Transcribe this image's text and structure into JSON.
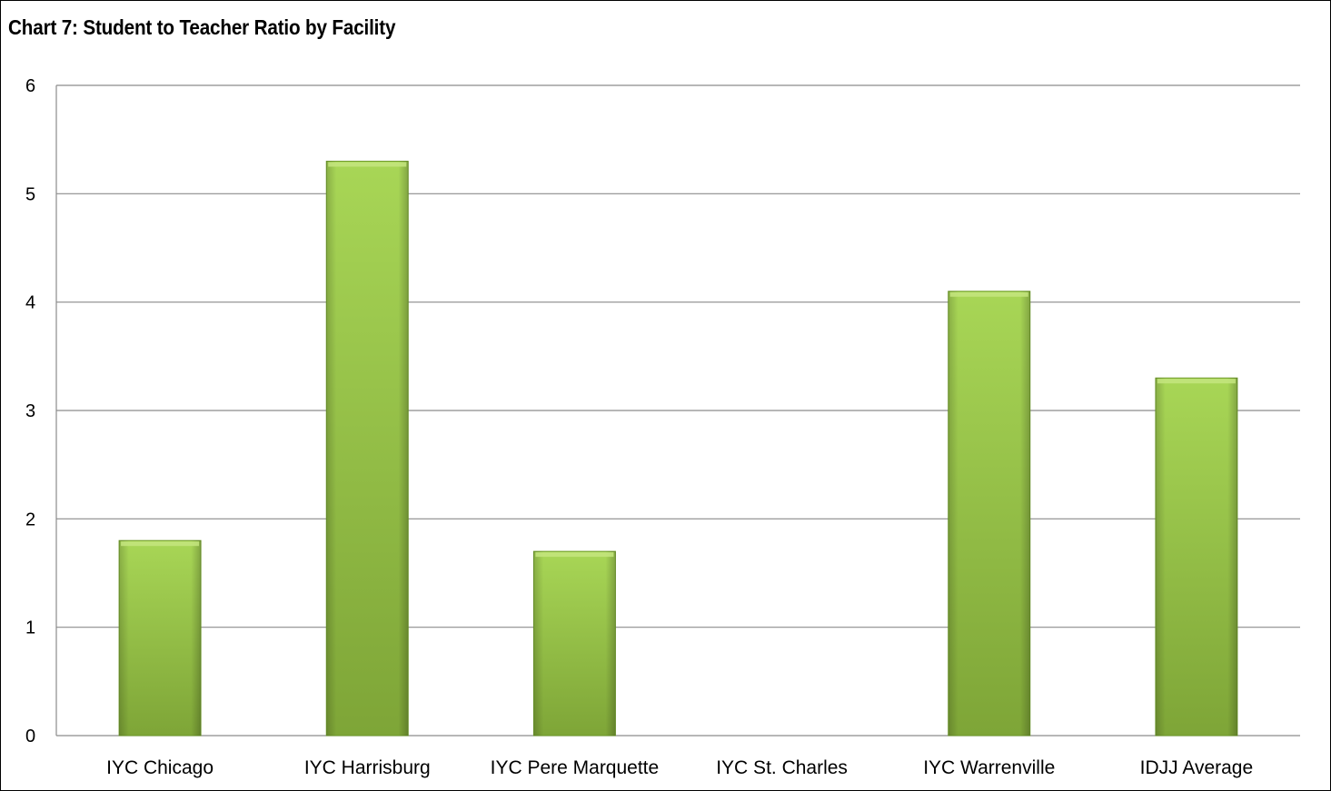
{
  "chart_data": {
    "type": "bar",
    "title": "Chart 7: Student to Teacher Ratio by Facility",
    "categories": [
      "IYC Chicago",
      "IYC Harrisburg",
      "IYC Pere Marquette",
      "IYC St. Charles",
      "IYC Warrenville",
      "IDJJ Average"
    ],
    "values": [
      1.8,
      5.3,
      1.7,
      0,
      4.1,
      3.3
    ],
    "ylim": [
      0,
      6
    ],
    "yticks": [
      "0",
      "1",
      "2",
      "3",
      "4",
      "5",
      "6"
    ],
    "grid": true,
    "legend": "none",
    "colors": {
      "bar_light": "#a8d656",
      "bar_mid": "#8fbb3f",
      "bar_dark": "#6f9a2c",
      "grid": "#8c8c8c"
    }
  }
}
